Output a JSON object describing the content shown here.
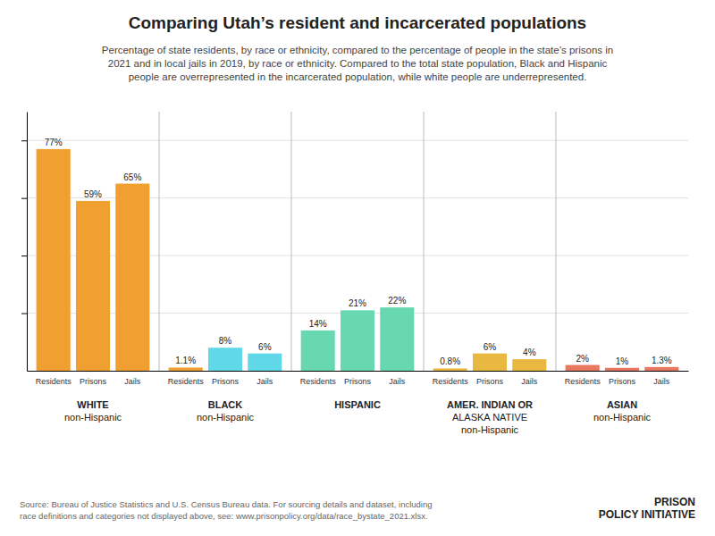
{
  "chart_data": {
    "type": "bar",
    "title": "Comparing Utah’s resident and incarcerated populations",
    "subtitle": "Percentage of state residents, by race or ethnicity, compared to the percentage of people in the state’s prisons in\n2021 and in local jails in 2019, by race or ethnicity. Compared to the total state population, Black and Hispanic\npeople are overrepresented in the incarcerated population, while white people are underrepresented.",
    "source": "Source: Bureau of Justice Statistics and U.S. Census Bureau data. For sourcing details and dataset, including\nrace definitions and categories not displayed above, see: www.prisonpolicy.org/data/race_bystate_2021.xlsx.",
    "annotations": [
      "PRISON\nPOLICY INITIATIVE"
    ],
    "categories": [
      "WHITE\nnon-Hispanic",
      "BLACK\nnon-Hispanic",
      "HISPANIC",
      "AMER. INDIAN OR\nALASKA NATIVE\nnon-Hispanic",
      "ASIAN\nnon-Hispanic"
    ],
    "series": [
      {
        "name": "Residents",
        "values": [
          77,
          1.1,
          14,
          0.8,
          2
        ],
        "value_labels": [
          "77%",
          "1.1%",
          "14%",
          "0.8%",
          "2%"
        ],
        "colors": [
          "#f0a030",
          "#f0a030",
          "#68d8b0",
          "#e8b840",
          "#e87860"
        ]
      },
      {
        "name": "Prisons",
        "values": [
          59,
          8,
          21,
          6,
          1
        ],
        "value_labels": [
          "59%",
          "8%",
          "21%",
          "6%",
          "1%"
        ],
        "colors": [
          "#f0a030",
          "#60d8e8",
          "#68d8b0",
          "#e8b840",
          "#e87860"
        ]
      },
      {
        "name": "Jails",
        "values": [
          65,
          6,
          22,
          4,
          1.3
        ],
        "value_labels": [
          "65%",
          "6%",
          "22%",
          "4%",
          "1.3%"
        ],
        "colors": [
          "#f0a030",
          "#60d8e8",
          "#68d8b0",
          "#e8b840",
          "#e87860"
        ]
      }
    ],
    "ylim": [
      0,
      90
    ],
    "yticks": [
      20,
      40,
      60,
      80
    ],
    "grid": true,
    "tick_labels": "x",
    "data_labels": true
  }
}
